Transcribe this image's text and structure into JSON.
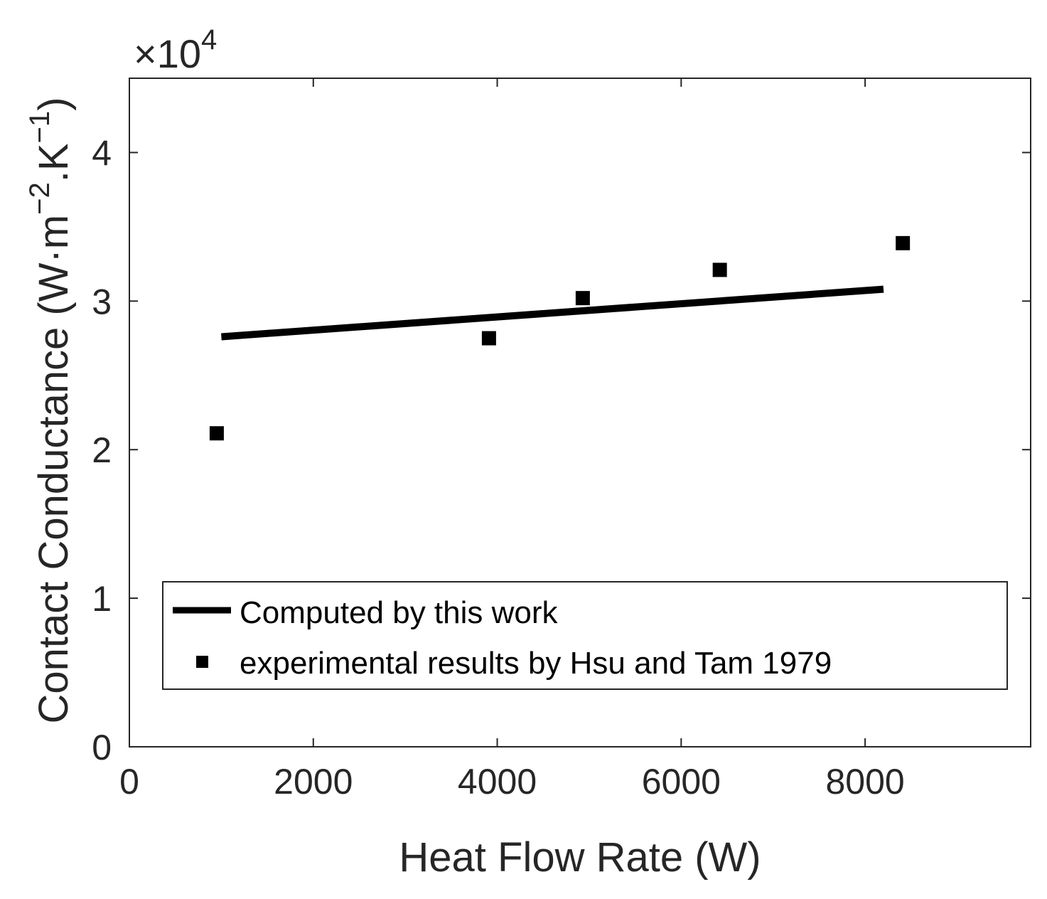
{
  "chart_data": {
    "type": "scatter",
    "title": "",
    "xlabel": "Heat Flow Rate (W)",
    "ylabel": "Contact Conductance (W·m",
    "ylabel_unit_parts": [
      "−2",
      ".K",
      "−1",
      ")"
    ],
    "y_exponent_label": {
      "prefix": "×10",
      "power": "4"
    },
    "y_scale_multiplier": 10000,
    "xlim": [
      0,
      9800
    ],
    "ylim": [
      0,
      4.5
    ],
    "x_ticks": [
      0,
      2000,
      4000,
      6000,
      8000
    ],
    "x_tick_labels": [
      "0",
      "2000",
      "4000",
      "6000",
      "8000"
    ],
    "y_ticks": [
      0,
      1,
      2,
      3,
      4
    ],
    "y_tick_labels": [
      "0",
      "1",
      "2",
      "3",
      "4"
    ],
    "grid": false,
    "legend_position": "bottom-right",
    "series": [
      {
        "name": "Computed by this work",
        "kind": "line",
        "color": "#000000",
        "x": [
          1000,
          8200
        ],
        "y": [
          2.76,
          3.08
        ]
      },
      {
        "name": "experimental results by Hsu and Tam 1979",
        "kind": "marker",
        "marker": "square",
        "color": "#000000",
        "x": [
          950,
          3910,
          4930,
          6420,
          8410
        ],
        "y": [
          2.11,
          2.75,
          3.02,
          3.21,
          3.39
        ]
      }
    ]
  }
}
